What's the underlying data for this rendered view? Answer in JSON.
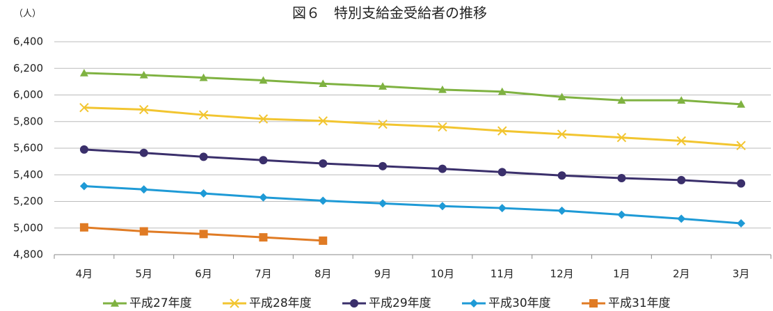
{
  "chart_data": {
    "type": "line",
    "title": "図６　特別支給金受給者の推移",
    "y_unit_label": "（人）",
    "categories": [
      "4月",
      "5月",
      "6月",
      "7月",
      "8月",
      "9月",
      "10月",
      "11月",
      "12月",
      "1月",
      "2月",
      "3月"
    ],
    "series": [
      {
        "name": "平成27年度",
        "color": "#7fb241",
        "marker": "triangle",
        "values": [
          6165,
          6150,
          6130,
          6110,
          6085,
          6065,
          6040,
          6025,
          5985,
          5960,
          5960,
          5930
        ]
      },
      {
        "name": "平成28年度",
        "color": "#f2c530",
        "marker": "x",
        "values": [
          5905,
          5890,
          5850,
          5820,
          5805,
          5780,
          5760,
          5730,
          5705,
          5680,
          5655,
          5620
        ]
      },
      {
        "name": "平成29年度",
        "color": "#3a2f6b",
        "marker": "circle",
        "values": [
          5590,
          5565,
          5535,
          5510,
          5485,
          5465,
          5445,
          5420,
          5395,
          5375,
          5360,
          5335
        ]
      },
      {
        "name": "平成30年度",
        "color": "#1e9ad6",
        "marker": "diamond",
        "values": [
          5315,
          5290,
          5260,
          5230,
          5205,
          5185,
          5165,
          5150,
          5130,
          5100,
          5070,
          5035
        ]
      },
      {
        "name": "平成31年度",
        "color": "#e07b24",
        "marker": "square",
        "values": [
          5005,
          4975,
          4955,
          4930,
          4905,
          null,
          null,
          null,
          null,
          null,
          null,
          null
        ]
      }
    ],
    "ylim": [
      4800,
      6400
    ],
    "yticks": [
      {
        "value": 4800,
        "label": "4,800"
      },
      {
        "value": 5000,
        "label": "5,000"
      },
      {
        "value": 5200,
        "label": "5,200"
      },
      {
        "value": 5400,
        "label": "5,400"
      },
      {
        "value": 5600,
        "label": "5,600"
      },
      {
        "value": 5800,
        "label": "5,800"
      },
      {
        "value": 6000,
        "label": "6,000"
      },
      {
        "value": 6200,
        "label": "6,200"
      },
      {
        "value": 6400,
        "label": "6,400"
      }
    ],
    "grid": true,
    "legend": "bottom"
  }
}
